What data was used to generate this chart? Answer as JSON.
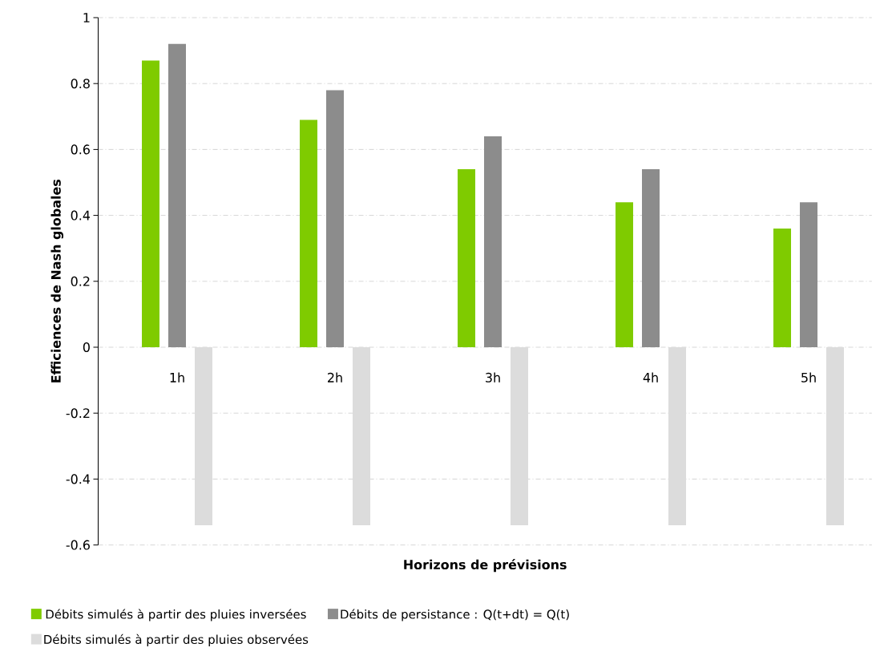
{
  "chart_data": {
    "type": "bar",
    "xlabel": "Horizons de prévisions",
    "ylabel": "Efficiences de Nash globales",
    "categories": [
      "1h",
      "2h",
      "3h",
      "4h",
      "5h"
    ],
    "series": [
      {
        "name": "Débits simulés à partir des pluies inversées",
        "color": "#7fcb00",
        "values": [
          0.87,
          0.69,
          0.54,
          0.44,
          0.36
        ]
      },
      {
        "name": "Débits de persistance : Q(t+dt) = Q(t)",
        "color": "#8c8c8c",
        "values": [
          0.92,
          0.78,
          0.64,
          0.54,
          0.44
        ]
      },
      {
        "name": "Débits simulés à partir des pluies observées",
        "color": "#dcdcdc",
        "values": [
          -0.54,
          -0.54,
          -0.54,
          -0.54,
          -0.54
        ]
      }
    ],
    "ylim": [
      -0.6,
      1
    ],
    "yticks": [
      -0.6,
      -0.4,
      -0.2,
      0,
      0.2,
      0.4,
      0.6,
      0.8,
      1
    ],
    "grid": "y",
    "legend": "bottom"
  }
}
